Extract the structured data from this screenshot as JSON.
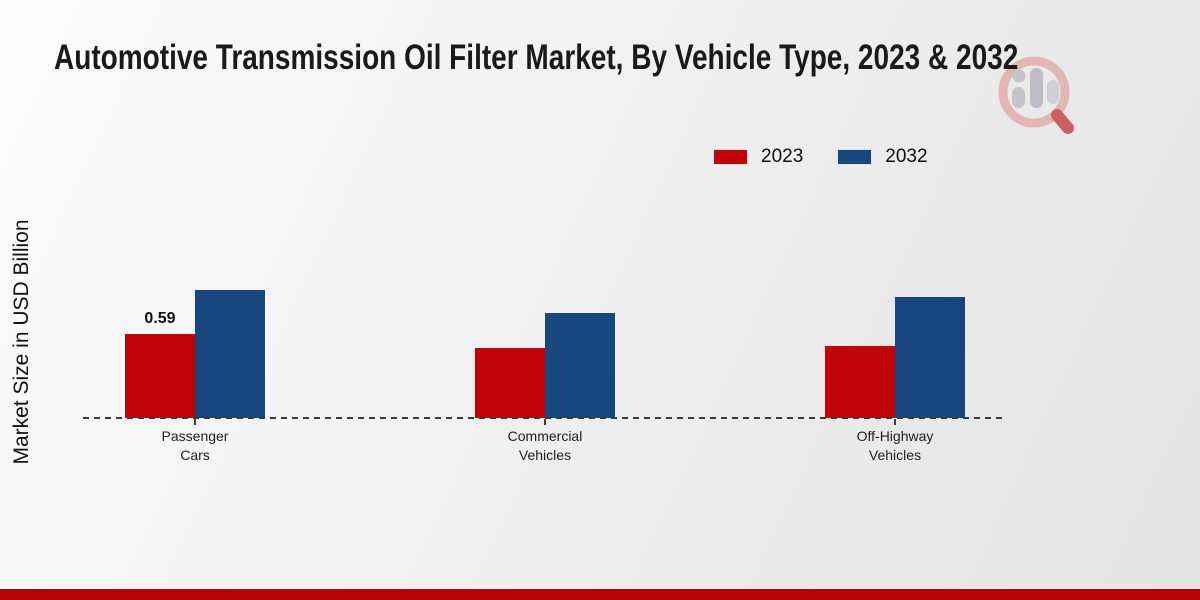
{
  "title": "Automotive Transmission Oil Filter Market, By Vehicle Type, 2023 & 2032",
  "ylabel": "Market Size in USD Billion",
  "legend": [
    {
      "label": "2023",
      "color": "#c00408"
    },
    {
      "label": "2032",
      "color": "#17477e"
    }
  ],
  "watermark_icon": "magnifier-bar-chart-logo",
  "footer": {
    "color": "#b50404"
  },
  "chart_data": {
    "type": "bar",
    "title": "Automotive Transmission Oil Filter Market, By Vehicle Type, 2023 & 2032",
    "xlabel": "",
    "ylabel": "Market Size in USD Billion",
    "categories": [
      "Passenger Cars",
      "Commercial Vehicles",
      "Off-Highway Vehicles"
    ],
    "category_label_lines": [
      [
        "Passenger",
        "Cars"
      ],
      [
        "Commercial",
        "Vehicles"
      ],
      [
        "Off-Highway",
        "Vehicles"
      ]
    ],
    "series": [
      {
        "name": "2023",
        "color": "#c00408",
        "values": [
          0.59,
          0.49,
          0.51
        ]
      },
      {
        "name": "2032",
        "color": "#17477e",
        "values": [
          0.9,
          0.74,
          0.85
        ]
      }
    ],
    "data_labels": [
      {
        "series": "2023",
        "category": "Passenger Cars",
        "text": "0.59"
      }
    ],
    "ylim": [
      0,
      1.2
    ],
    "grid": false,
    "legend_position": "top-right",
    "baseline_style": "dashed"
  }
}
